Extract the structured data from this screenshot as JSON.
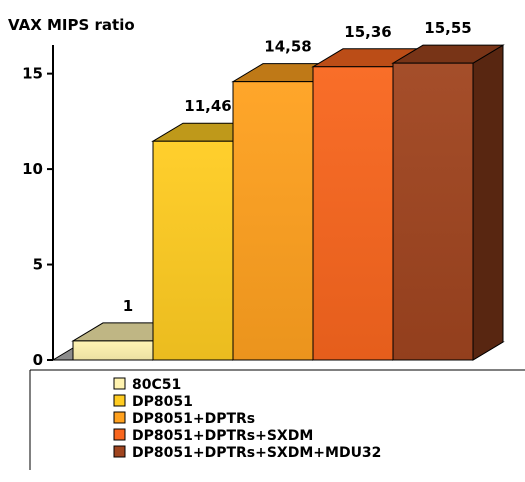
{
  "chart_data": {
    "type": "bar",
    "title": "VAX MIPS ratio",
    "xlabel": "",
    "ylabel": "",
    "ylim": [
      0,
      16.5
    ],
    "yticks": [
      0,
      5,
      10,
      15
    ],
    "grid": false,
    "three_d": true,
    "legend_position": "bottom",
    "categories": [
      "80C51",
      "DP8051",
      "DP8051+DPTRs",
      "DP8051+DPTRs+SXDM",
      "DP8051+DPTRs+SXDM+MDU32"
    ],
    "values": [
      1,
      11.46,
      14.58,
      15.36,
      15.55
    ],
    "value_labels": [
      "1",
      "11,46",
      "14,58",
      "15,36",
      "15,55"
    ],
    "colors": {
      "80C51": "#FFF3B0",
      "DP8051": "#FFCC22",
      "DP8051+DPTRs": "#FFA11F",
      "DP8051+DPTRs+SXDM": "#F9661E",
      "DP8051+DPTRs+SXDM+MDU32": "#A0451F"
    }
  }
}
